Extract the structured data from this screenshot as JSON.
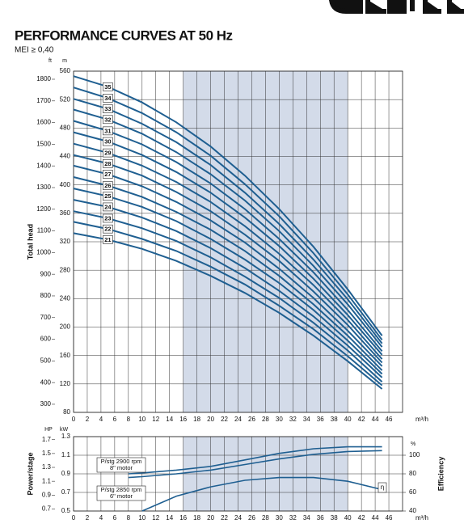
{
  "chart_data": [
    {
      "type": "line",
      "title": "PERFORMANCE CURVES AT 50 Hz",
      "subtitle": "MEI ≥ 0,40",
      "x_label": "m³/h",
      "y_label": "Total head",
      "y_unit": "m",
      "y_outer_unit": "ft",
      "x": [
        0,
        5,
        10,
        15,
        20,
        25,
        30,
        35,
        40,
        45
      ],
      "xlim": [
        0,
        48
      ],
      "xticks": [
        0,
        2,
        4,
        6,
        8,
        10,
        12,
        14,
        16,
        18,
        20,
        22,
        24,
        26,
        28,
        30,
        32,
        34,
        36,
        38,
        40,
        42,
        44,
        46
      ],
      "ylim": [
        80,
        560
      ],
      "yticks": [
        80,
        120,
        160,
        200,
        240,
        280,
        320,
        360,
        400,
        440,
        480,
        520,
        560
      ],
      "y_outer_lim": [
        262.5,
        1837.3
      ],
      "y_outer_ticks": [
        300,
        400,
        500,
        600,
        700,
        800,
        900,
        1000,
        1100,
        1200,
        1300,
        1400,
        1500,
        1600,
        1700,
        1800
      ],
      "highlight": [
        16,
        40
      ],
      "highlight_color": "#d3dbe9",
      "grid": true,
      "series": [
        {
          "name": "21",
          "color": "#1f5f91",
          "values": [
            332,
            323,
            310,
            293,
            272,
            248,
            220,
            188,
            152,
            113
          ]
        },
        {
          "name": "22",
          "color": "#1f5f91",
          "values": [
            348,
            338,
            324,
            307,
            285,
            260,
            230,
            197,
            159,
            118
          ]
        },
        {
          "name": "23",
          "color": "#1f5f91",
          "values": [
            363,
            353,
            339,
            321,
            298,
            271,
            241,
            206,
            167,
            123
          ]
        },
        {
          "name": "24",
          "color": "#1f5f91",
          "values": [
            379,
            369,
            354,
            335,
            311,
            283,
            251,
            215,
            174,
            129
          ]
        },
        {
          "name": "25",
          "color": "#1f5f91",
          "values": [
            395,
            384,
            369,
            349,
            324,
            295,
            262,
            224,
            181,
            134
          ]
        },
        {
          "name": "26",
          "color": "#1f5f91",
          "values": [
            411,
            399,
            383,
            362,
            337,
            307,
            272,
            232,
            188,
            139
          ]
        },
        {
          "name": "27",
          "color": "#1f5f91",
          "values": [
            427,
            415,
            398,
            376,
            350,
            319,
            282,
            241,
            195,
            145
          ]
        },
        {
          "name": "28",
          "color": "#1f5f91",
          "values": [
            442,
            430,
            413,
            390,
            363,
            330,
            293,
            250,
            203,
            150
          ]
        },
        {
          "name": "29",
          "color": "#1f5f91",
          "values": [
            458,
            445,
            427,
            404,
            376,
            342,
            303,
            259,
            210,
            155
          ]
        },
        {
          "name": "30",
          "color": "#1f5f91",
          "values": [
            474,
            461,
            442,
            418,
            389,
            354,
            314,
            268,
            217,
            161
          ]
        },
        {
          "name": "31",
          "color": "#1f5f91",
          "values": [
            490,
            476,
            457,
            432,
            402,
            366,
            324,
            277,
            224,
            166
          ]
        },
        {
          "name": "32",
          "color": "#1f5f91",
          "values": [
            506,
            492,
            472,
            446,
            415,
            378,
            335,
            286,
            232,
            172
          ]
        },
        {
          "name": "33",
          "color": "#1f5f91",
          "values": [
            521,
            507,
            486,
            460,
            428,
            389,
            345,
            295,
            239,
            177
          ]
        },
        {
          "name": "34",
          "color": "#1f5f91",
          "values": [
            537,
            522,
            501,
            474,
            441,
            401,
            356,
            304,
            246,
            182
          ]
        },
        {
          "name": "35",
          "color": "#1f5f91",
          "values": [
            553,
            538,
            516,
            488,
            454,
            413,
            366,
            313,
            253,
            188
          ]
        }
      ]
    },
    {
      "type": "line",
      "x_label": "m³/h",
      "y_label": "Power/stage",
      "y2_label": "Efficiency",
      "y_unit": "kW",
      "y_outer_unit": "HP",
      "y2_unit": "%",
      "xlim": [
        0,
        48
      ],
      "xticks": [
        0,
        2,
        4,
        6,
        8,
        10,
        12,
        14,
        16,
        18,
        20,
        22,
        24,
        26,
        28,
        30,
        32,
        34,
        36,
        38,
        40,
        42,
        44,
        46
      ],
      "ylim": [
        0.5,
        1.3
      ],
      "yticks": [
        0.5,
        0.7,
        0.9,
        1.1,
        1.3
      ],
      "y_outer_lim": [
        0.6705,
        1.7433
      ],
      "y_outer_ticks": [
        0.7,
        0.9,
        1.1,
        1.3,
        1.5,
        1.7
      ],
      "y2lim": [
        40,
        120
      ],
      "y2ticks": [
        40,
        60,
        80,
        100
      ],
      "highlight": [
        16,
        40
      ],
      "highlight_color": "#d3dbe9",
      "grid": true,
      "series": [
        {
          "name": "P/stg 2900 rpm",
          "motor": "8\" motor",
          "color": "#1f5f91",
          "x": [
            8,
            10,
            15,
            20,
            25,
            30,
            35,
            40,
            45
          ],
          "values": [
            0.9,
            0.91,
            0.94,
            0.98,
            1.05,
            1.12,
            1.17,
            1.19,
            1.19
          ]
        },
        {
          "name": "P/stg 2850 rpm",
          "motor": "6\" motor",
          "color": "#1f5f91",
          "x": [
            8,
            10,
            15,
            20,
            25,
            30,
            35,
            40,
            45
          ],
          "values": [
            0.86,
            0.87,
            0.9,
            0.94,
            1.0,
            1.06,
            1.11,
            1.14,
            1.15
          ]
        },
        {
          "name": "η",
          "axis": "y2",
          "color": "#1f5f91",
          "x": [
            10,
            15,
            20,
            25,
            30,
            35,
            40,
            45
          ],
          "values": [
            40,
            56,
            66,
            73,
            76,
            76,
            72,
            63
          ]
        }
      ]
    }
  ]
}
